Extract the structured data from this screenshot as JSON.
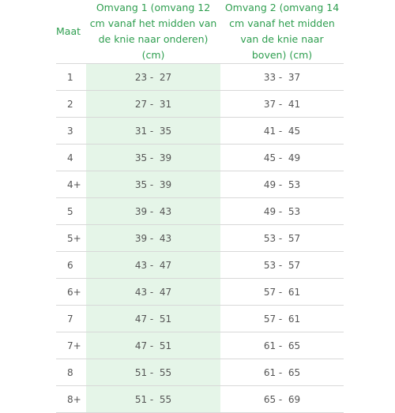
{
  "table": {
    "headers": {
      "size": "Maat",
      "circumference_1": "Omvang 1 (omvang 12 cm vanaf het midden van de knie naar onderen) (cm)",
      "circumference_2": "Omvang 2 (omvang 14 cm vanaf het midden van de knie naar boven) (cm)"
    },
    "rows": [
      {
        "size": "1",
        "c1": "23 -  27",
        "c2": "33 -  37"
      },
      {
        "size": "2",
        "c1": "27 -  31",
        "c2": "37 -  41"
      },
      {
        "size": "3",
        "c1": "31 -  35",
        "c2": "41 -  45"
      },
      {
        "size": "4",
        "c1": "35 -  39",
        "c2": "45 -  49"
      },
      {
        "size": "4+",
        "c1": "35 -  39",
        "c2": "49 -  53"
      },
      {
        "size": "5",
        "c1": "39 -  43",
        "c2": "49 -  53"
      },
      {
        "size": "5+",
        "c1": "39 -  43",
        "c2": "53 -  57"
      },
      {
        "size": "6",
        "c1": "43 -  47",
        "c2": "53 -  57"
      },
      {
        "size": "6+",
        "c1": "43 -  47",
        "c2": "57 -  61"
      },
      {
        "size": "7",
        "c1": "47 -  51",
        "c2": "57 -  61"
      },
      {
        "size": "7+",
        "c1": "47 -  51",
        "c2": "61 -  65"
      },
      {
        "size": "8",
        "c1": "51 -  55",
        "c2": "61 -  65"
      },
      {
        "size": "8+",
        "c1": "51 -  55",
        "c2": "65 -  69"
      }
    ]
  },
  "colors": {
    "header_text": "#2e9e4f",
    "highlight_column": "#e5f5e8",
    "cell_text": "#555555",
    "row_border": "#d8d8d8"
  }
}
